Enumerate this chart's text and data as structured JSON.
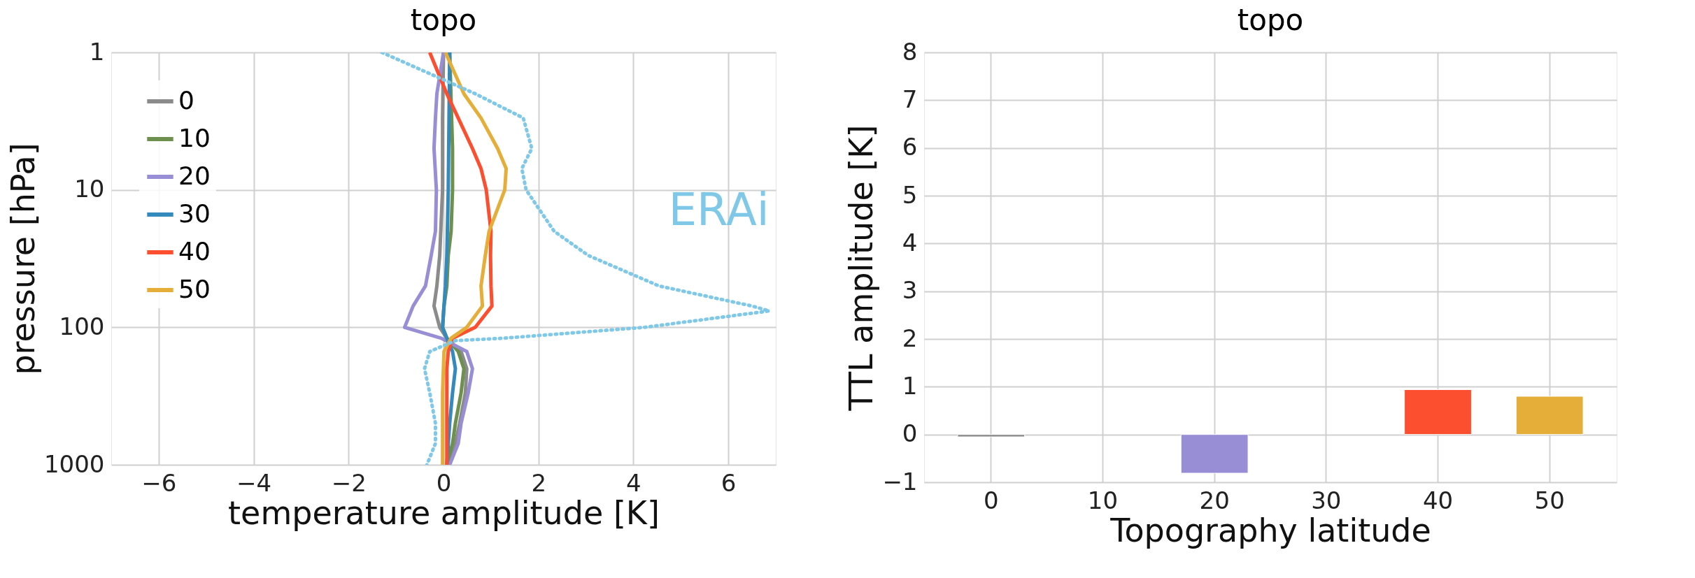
{
  "chart_data": [
    {
      "type": "line",
      "title": "topo",
      "xlabel": "temperature amplitude [K]",
      "ylabel": "pressure [hPa]",
      "xlim": [
        -7,
        7
      ],
      "xticks": [
        -6,
        -4,
        -2,
        0,
        2,
        4,
        6
      ],
      "ylim": [
        1000,
        1
      ],
      "yticks": [
        1,
        10,
        100,
        1000
      ],
      "log": "y",
      "grid": true,
      "legend": "top left",
      "series": [
        {
          "name": "0",
          "color": "#8b8b8b",
          "x": [
            0,
            -0.02,
            -0.02,
            -0.08,
            -0.14,
            -0.2,
            -0.08,
            0.07,
            0.37,
            0.49,
            0.46,
            0.34,
            0.25,
            0.1
          ],
          "values": [
            1,
            3,
            10,
            30,
            50,
            70,
            100,
            120,
            150,
            200,
            300,
            500,
            700,
            1000
          ]
        },
        {
          "name": "10",
          "color": "#6d904f",
          "x": [
            0.13,
            0.19,
            0.19,
            0.16,
            0.1,
            0.07,
            0.01,
            -0.02,
            0.07,
            0.31,
            0.43,
            0.37,
            0.25,
            0.19,
            0.07
          ],
          "values": [
            1,
            5,
            10,
            20,
            30,
            50,
            70,
            100,
            120,
            150,
            200,
            300,
            500,
            700,
            1000
          ]
        },
        {
          "name": "20",
          "color": "#988ed5",
          "x": [
            0,
            -0.14,
            -0.17,
            -0.2,
            -0.15,
            -0.17,
            -0.26,
            -0.38,
            -0.64,
            -0.82,
            -0.05,
            0.49,
            0.61,
            0.52,
            0.37,
            0.31,
            0.13
          ],
          "values": [
            1,
            2,
            3,
            5,
            10,
            20,
            30,
            50,
            70,
            100,
            120,
            150,
            200,
            300,
            500,
            700,
            1000
          ]
        },
        {
          "name": "30",
          "color": "#348abd",
          "x": [
            0.13,
            0.1,
            0.07,
            0.04,
            0.01,
            -0.02,
            0.07,
            0.19,
            0.25,
            0.19,
            0.13,
            0.07
          ],
          "values": [
            1,
            10,
            30,
            50,
            70,
            100,
            120,
            150,
            200,
            300,
            500,
            1000
          ]
        },
        {
          "name": "40",
          "color": "#fc4f30",
          "x": [
            -0.29,
            0.07,
            0.31,
            0.61,
            0.79,
            0.9,
            1.0,
            0.99,
            1.0,
            1.02,
            0.67,
            0.19,
            0.1,
            0.07,
            0.07,
            0.07,
            0.07,
            0.07
          ],
          "values": [
            1,
            2,
            3,
            5,
            7,
            10,
            20,
            30,
            50,
            70,
            100,
            120,
            150,
            200,
            300,
            500,
            700,
            1000
          ]
        },
        {
          "name": "50",
          "color": "#e5ae38",
          "x": [
            0.04,
            0.43,
            0.79,
            1.14,
            1.32,
            1.29,
            0.96,
            0.88,
            0.79,
            0.82,
            0.49,
            0.16,
            0.01,
            -0.02,
            -0.02
          ],
          "values": [
            1,
            2,
            3,
            5,
            7,
            10,
            20,
            30,
            50,
            70,
            100,
            120,
            150,
            300,
            1000
          ]
        },
        {
          "name": "ERAi",
          "color": "#7fc8e8",
          "line_style": "dotted",
          "x": [
            -1.3,
            0.67,
            1.68,
            1.86,
            1.65,
            1.74,
            2.33,
            3.05,
            4.54,
            6.5,
            6.86,
            4.24,
            1.26,
            0.25,
            -0.29,
            -0.4,
            -0.29,
            -0.17,
            -0.17,
            -0.35
          ],
          "values": [
            1,
            2,
            3,
            5,
            7,
            10,
            20,
            30,
            50,
            70,
            76,
            100,
            120,
            125,
            150,
            200,
            300,
            500,
            700,
            1000
          ]
        }
      ]
    },
    {
      "type": "bar",
      "title": "topo",
      "xlabel": "Topography latitude",
      "ylabel": "TTL amplitude [K]",
      "categories": [
        "0",
        "10",
        "20",
        "30",
        "40",
        "50"
      ],
      "values": [
        -0.05,
        null,
        -0.81,
        null,
        0.94,
        0.8
      ],
      "colors": [
        "#8b8b8b",
        "#6d904f",
        "#988ed5",
        "#348abd",
        "#fc4f30",
        "#e5ae38"
      ],
      "ylim": [
        -1,
        8
      ],
      "yticks": [
        -1,
        0,
        1,
        2,
        3,
        4,
        5,
        6,
        7,
        8
      ],
      "grid": true
    }
  ]
}
